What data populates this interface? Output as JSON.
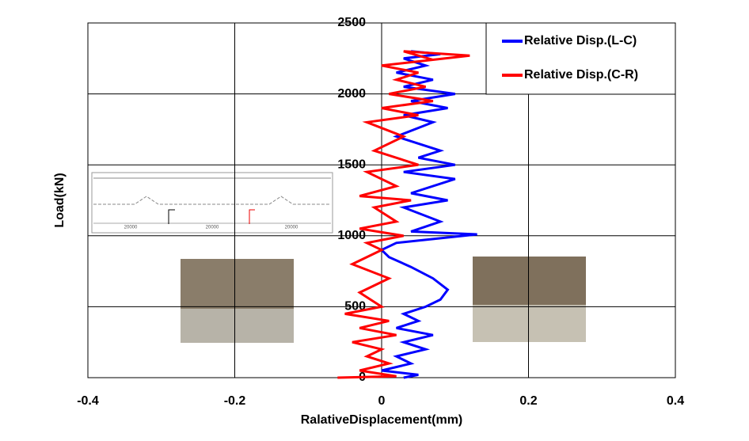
{
  "chart_data": {
    "type": "line",
    "x_label": "RalativeDisplacement(mm)",
    "y_label": "Load(kN)",
    "xlim": [
      -0.4,
      0.4
    ],
    "xticks": [
      -0.4,
      -0.2,
      0,
      0.2,
      0.4
    ],
    "ylim": [
      0,
      2500
    ],
    "yticks": [
      0,
      500,
      1000,
      1500,
      2000,
      2500
    ],
    "grid": true,
    "legend": "upper right",
    "inset_labels": [
      "20000",
      "20000",
      "20000"
    ],
    "series": [
      {
        "name": "Relative Disp.(L-C)",
        "color": "#0000ff",
        "x": [
          0.03,
          0.05,
          0.0,
          0.04,
          0.02,
          0.06,
          0.03,
          0.07,
          0.02,
          0.05,
          0.03,
          0.06,
          0.08,
          0.09,
          0.07,
          0.04,
          0.01,
          0.0,
          0.02,
          0.13,
          0.04,
          0.08,
          0.03,
          0.09,
          0.04,
          0.1,
          0.03,
          0.1,
          0.05,
          0.08,
          0.02,
          0.07,
          0.03,
          0.09,
          0.04,
          0.1,
          0.03,
          0.07,
          0.02,
          0.06,
          0.03,
          0.08,
          0.04
        ],
        "values": [
          0,
          20,
          50,
          100,
          150,
          200,
          250,
          300,
          350,
          400,
          450,
          500,
          550,
          620,
          700,
          780,
          850,
          900,
          950,
          1010,
          1030,
          1100,
          1200,
          1250,
          1300,
          1400,
          1450,
          1500,
          1550,
          1600,
          1700,
          1800,
          1850,
          1900,
          1950,
          2000,
          2050,
          2100,
          2150,
          2200,
          2250,
          2280,
          2300
        ]
      },
      {
        "name": "Relative Disp.(C-R)",
        "color": "#ff0000",
        "x": [
          -0.06,
          0.02,
          -0.03,
          0.01,
          -0.02,
          0.0,
          -0.04,
          0.02,
          -0.03,
          0.01,
          -0.05,
          0.0,
          -0.03,
          0.01,
          -0.04,
          0.0,
          -0.02,
          0.03,
          -0.03,
          0.02,
          -0.01,
          0.04,
          -0.03,
          0.02,
          -0.02,
          0.05,
          -0.01,
          0.03,
          -0.02,
          0.05,
          0.0,
          0.07,
          0.01,
          0.06,
          0.02,
          0.05,
          0.0,
          0.12,
          0.03,
          0.07
        ],
        "values": [
          0,
          10,
          50,
          100,
          150,
          200,
          250,
          300,
          350,
          400,
          450,
          500,
          600,
          700,
          800,
          900,
          950,
          1000,
          1050,
          1100,
          1200,
          1250,
          1280,
          1350,
          1450,
          1500,
          1600,
          1700,
          1800,
          1850,
          1900,
          1950,
          2000,
          2050,
          2100,
          2150,
          2200,
          2270,
          2300,
          2240
        ]
      }
    ]
  }
}
